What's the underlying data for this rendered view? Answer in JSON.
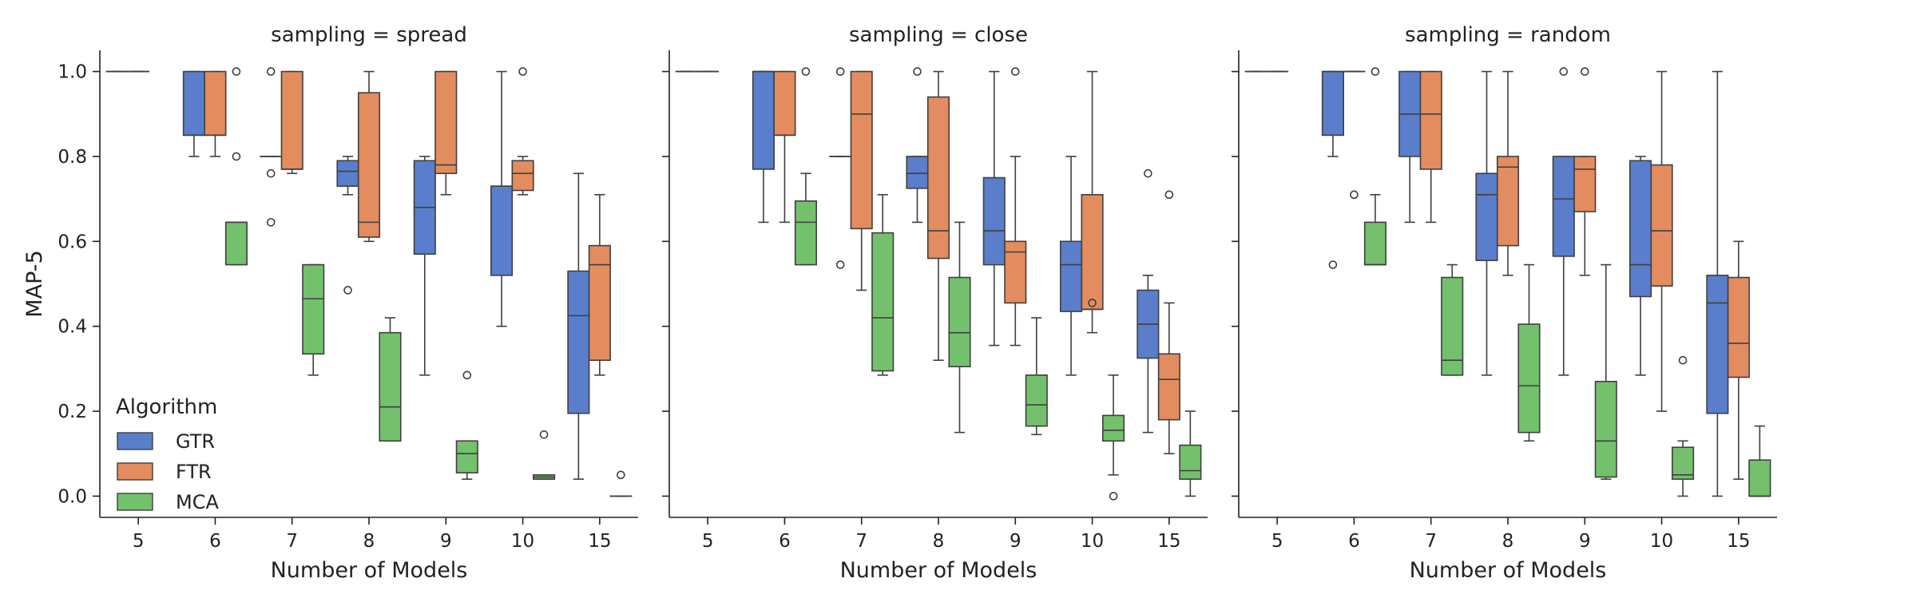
{
  "chart_data": {
    "type": "box",
    "ylabel": "MAP-5",
    "ylim": [
      -0.05,
      1.05
    ],
    "yticks": [
      0.0,
      0.2,
      0.4,
      0.6,
      0.8,
      1.0
    ],
    "ytick_labels": [
      "0.0",
      "0.2",
      "0.4",
      "0.6",
      "0.8",
      "1.0"
    ],
    "legend": {
      "title": "Algorithm",
      "position": "lower-left",
      "entries": [
        {
          "name": "GTR",
          "color": "#5a7ecb"
        },
        {
          "name": "FTR",
          "color": "#e28c5f"
        },
        {
          "name": "MCA",
          "color": "#73c16c"
        }
      ]
    },
    "panels": [
      {
        "title": "sampling = spread",
        "xlabel": "Number of Models",
        "categories": [
          "5",
          "6",
          "7",
          "8",
          "9",
          "10",
          "15"
        ],
        "series": [
          {
            "name": "GTR",
            "boxes": [
              {
                "wlo": 1.0,
                "q1": 1.0,
                "med": 1.0,
                "q3": 1.0,
                "whi": 1.0,
                "fliers": []
              },
              {
                "wlo": 0.8,
                "q1": 0.85,
                "med": 0.85,
                "q3": 1.0,
                "whi": 1.0,
                "fliers": []
              },
              {
                "wlo": 0.8,
                "q1": 0.8,
                "med": 0.8,
                "q3": 0.8,
                "whi": 0.8,
                "fliers": [
                  0.76,
                  0.645,
                  1.0
                ]
              },
              {
                "wlo": 0.71,
                "q1": 0.73,
                "med": 0.765,
                "q3": 0.79,
                "whi": 0.8,
                "fliers": [
                  0.485
                ]
              },
              {
                "wlo": 0.285,
                "q1": 0.57,
                "med": 0.68,
                "q3": 0.79,
                "whi": 0.8,
                "fliers": []
              },
              {
                "wlo": 0.4,
                "q1": 0.52,
                "med": 0.73,
                "q3": 0.73,
                "whi": 1.0,
                "fliers": []
              },
              {
                "wlo": 0.04,
                "q1": 0.195,
                "med": 0.425,
                "q3": 0.53,
                "whi": 0.76,
                "fliers": []
              }
            ]
          },
          {
            "name": "FTR",
            "boxes": [
              {
                "wlo": 1.0,
                "q1": 1.0,
                "med": 1.0,
                "q3": 1.0,
                "whi": 1.0,
                "fliers": []
              },
              {
                "wlo": 0.8,
                "q1": 0.85,
                "med": 0.85,
                "q3": 1.0,
                "whi": 1.0,
                "fliers": []
              },
              {
                "wlo": 0.76,
                "q1": 0.77,
                "med": 0.77,
                "q3": 1.0,
                "whi": 1.0,
                "fliers": []
              },
              {
                "wlo": 0.6,
                "q1": 0.61,
                "med": 0.645,
                "q3": 0.95,
                "whi": 1.0,
                "fliers": []
              },
              {
                "wlo": 0.71,
                "q1": 0.76,
                "med": 0.78,
                "q3": 1.0,
                "whi": 1.0,
                "fliers": []
              },
              {
                "wlo": 0.71,
                "q1": 0.72,
                "med": 0.76,
                "q3": 0.79,
                "whi": 0.8,
                "fliers": [
                  1.0
                ]
              },
              {
                "wlo": 0.285,
                "q1": 0.32,
                "med": 0.545,
                "q3": 0.59,
                "whi": 0.71,
                "fliers": []
              }
            ]
          },
          {
            "name": "MCA",
            "boxes": [
              {
                "wlo": null,
                "q1": null,
                "med": null,
                "q3": null,
                "whi": null,
                "fliers": []
              },
              {
                "wlo": 0.545,
                "q1": 0.545,
                "med": 0.645,
                "q3": 0.645,
                "whi": 0.645,
                "fliers": [
                  1.0,
                  0.8
                ]
              },
              {
                "wlo": 0.285,
                "q1": 0.335,
                "med": 0.465,
                "q3": 0.545,
                "whi": 0.545,
                "fliers": []
              },
              {
                "wlo": 0.13,
                "q1": 0.13,
                "med": 0.21,
                "q3": 0.385,
                "whi": 0.42,
                "fliers": []
              },
              {
                "wlo": 0.04,
                "q1": 0.055,
                "med": 0.1,
                "q3": 0.13,
                "whi": 0.13,
                "fliers": [
                  0.285
                ]
              },
              {
                "wlo": 0.04,
                "q1": 0.04,
                "med": 0.045,
                "q3": 0.05,
                "whi": 0.05,
                "fliers": [
                  0.145
                ]
              },
              {
                "wlo": 0.0,
                "q1": 0.0,
                "med": 0.0,
                "q3": 0.0,
                "whi": 0.0,
                "fliers": [
                  0.05
                ]
              }
            ]
          }
        ]
      },
      {
        "title": "sampling = close",
        "xlabel": "Number of Models",
        "categories": [
          "5",
          "6",
          "7",
          "8",
          "9",
          "10",
          "15"
        ],
        "series": [
          {
            "name": "GTR",
            "boxes": [
              {
                "wlo": 1.0,
                "q1": 1.0,
                "med": 1.0,
                "q3": 1.0,
                "whi": 1.0,
                "fliers": []
              },
              {
                "wlo": 0.645,
                "q1": 0.77,
                "med": 1.0,
                "q3": 1.0,
                "whi": 1.0,
                "fliers": []
              },
              {
                "wlo": 0.8,
                "q1": 0.8,
                "med": 0.8,
                "q3": 0.8,
                "whi": 0.8,
                "fliers": [
                  1.0,
                  0.545
                ]
              },
              {
                "wlo": 0.645,
                "q1": 0.725,
                "med": 0.76,
                "q3": 0.8,
                "whi": 0.8,
                "fliers": [
                  1.0
                ]
              },
              {
                "wlo": 0.355,
                "q1": 0.545,
                "med": 0.625,
                "q3": 0.75,
                "whi": 1.0,
                "fliers": []
              },
              {
                "wlo": 0.285,
                "q1": 0.435,
                "med": 0.545,
                "q3": 0.6,
                "whi": 0.8,
                "fliers": []
              },
              {
                "wlo": 0.15,
                "q1": 0.325,
                "med": 0.405,
                "q3": 0.485,
                "whi": 0.52,
                "fliers": [
                  0.76
                ]
              }
            ]
          },
          {
            "name": "FTR",
            "boxes": [
              {
                "wlo": 1.0,
                "q1": 1.0,
                "med": 1.0,
                "q3": 1.0,
                "whi": 1.0,
                "fliers": []
              },
              {
                "wlo": 0.645,
                "q1": 0.85,
                "med": 0.85,
                "q3": 1.0,
                "whi": 1.0,
                "fliers": []
              },
              {
                "wlo": 0.485,
                "q1": 0.63,
                "med": 0.9,
                "q3": 1.0,
                "whi": 1.0,
                "fliers": []
              },
              {
                "wlo": 0.32,
                "q1": 0.56,
                "med": 0.625,
                "q3": 0.94,
                "whi": 1.0,
                "fliers": []
              },
              {
                "wlo": 0.355,
                "q1": 0.455,
                "med": 0.575,
                "q3": 0.6,
                "whi": 0.8,
                "fliers": [
                  1.0
                ]
              },
              {
                "wlo": 0.385,
                "q1": 0.44,
                "med": 0.44,
                "q3": 0.71,
                "whi": 1.0,
                "fliers": [
                  0.455
                ]
              },
              {
                "wlo": 0.1,
                "q1": 0.18,
                "med": 0.275,
                "q3": 0.335,
                "whi": 0.455,
                "fliers": [
                  0.71
                ]
              }
            ]
          },
          {
            "name": "MCA",
            "boxes": [
              {
                "wlo": null,
                "q1": null,
                "med": null,
                "q3": null,
                "whi": null,
                "fliers": []
              },
              {
                "wlo": 0.545,
                "q1": 0.545,
                "med": 0.645,
                "q3": 0.695,
                "whi": 0.76,
                "fliers": [
                  1.0
                ]
              },
              {
                "wlo": 0.285,
                "q1": 0.295,
                "med": 0.42,
                "q3": 0.62,
                "whi": 0.71,
                "fliers": []
              },
              {
                "wlo": 0.15,
                "q1": 0.305,
                "med": 0.385,
                "q3": 0.515,
                "whi": 0.645,
                "fliers": []
              },
              {
                "wlo": 0.145,
                "q1": 0.165,
                "med": 0.215,
                "q3": 0.285,
                "whi": 0.42,
                "fliers": []
              },
              {
                "wlo": 0.05,
                "q1": 0.13,
                "med": 0.155,
                "q3": 0.19,
                "whi": 0.285,
                "fliers": [
                  0.0
                ]
              },
              {
                "wlo": 0.0,
                "q1": 0.04,
                "med": 0.06,
                "q3": 0.12,
                "whi": 0.2,
                "fliers": []
              }
            ]
          }
        ]
      },
      {
        "title": "sampling = random",
        "xlabel": "Number of Models",
        "categories": [
          "5",
          "6",
          "7",
          "8",
          "9",
          "10",
          "15"
        ],
        "series": [
          {
            "name": "GTR",
            "boxes": [
              {
                "wlo": 1.0,
                "q1": 1.0,
                "med": 1.0,
                "q3": 1.0,
                "whi": 1.0,
                "fliers": []
              },
              {
                "wlo": 0.8,
                "q1": 0.85,
                "med": 1.0,
                "q3": 1.0,
                "whi": 1.0,
                "fliers": [
                  0.545
                ]
              },
              {
                "wlo": 0.645,
                "q1": 0.8,
                "med": 0.9,
                "q3": 1.0,
                "whi": 1.0,
                "fliers": []
              },
              {
                "wlo": 0.285,
                "q1": 0.555,
                "med": 0.71,
                "q3": 0.76,
                "whi": 1.0,
                "fliers": []
              },
              {
                "wlo": 0.285,
                "q1": 0.565,
                "med": 0.7,
                "q3": 0.8,
                "whi": 0.8,
                "fliers": [
                  1.0
                ]
              },
              {
                "wlo": 0.285,
                "q1": 0.47,
                "med": 0.545,
                "q3": 0.79,
                "whi": 0.8,
                "fliers": []
              },
              {
                "wlo": 0.0,
                "q1": 0.195,
                "med": 0.455,
                "q3": 0.52,
                "whi": 1.0,
                "fliers": []
              }
            ]
          },
          {
            "name": "FTR",
            "boxes": [
              {
                "wlo": 1.0,
                "q1": 1.0,
                "med": 1.0,
                "q3": 1.0,
                "whi": 1.0,
                "fliers": []
              },
              {
                "wlo": 1.0,
                "q1": 1.0,
                "med": 1.0,
                "q3": 1.0,
                "whi": 1.0,
                "fliers": [
                  0.71
                ]
              },
              {
                "wlo": 0.645,
                "q1": 0.77,
                "med": 0.9,
                "q3": 1.0,
                "whi": 1.0,
                "fliers": []
              },
              {
                "wlo": 0.52,
                "q1": 0.59,
                "med": 0.775,
                "q3": 0.8,
                "whi": 1.0,
                "fliers": []
              },
              {
                "wlo": 0.52,
                "q1": 0.67,
                "med": 0.77,
                "q3": 0.8,
                "whi": 0.8,
                "fliers": [
                  1.0
                ]
              },
              {
                "wlo": 0.2,
                "q1": 0.495,
                "med": 0.625,
                "q3": 0.78,
                "whi": 1.0,
                "fliers": []
              },
              {
                "wlo": 0.04,
                "q1": 0.28,
                "med": 0.36,
                "q3": 0.515,
                "whi": 0.6,
                "fliers": []
              }
            ]
          },
          {
            "name": "MCA",
            "boxes": [
              {
                "wlo": null,
                "q1": null,
                "med": null,
                "q3": null,
                "whi": null,
                "fliers": []
              },
              {
                "wlo": 0.545,
                "q1": 0.545,
                "med": 0.545,
                "q3": 0.645,
                "whi": 0.71,
                "fliers": [
                  1.0
                ]
              },
              {
                "wlo": 0.285,
                "q1": 0.285,
                "med": 0.32,
                "q3": 0.515,
                "whi": 0.545,
                "fliers": []
              },
              {
                "wlo": 0.13,
                "q1": 0.15,
                "med": 0.26,
                "q3": 0.405,
                "whi": 0.545,
                "fliers": []
              },
              {
                "wlo": 0.04,
                "q1": 0.045,
                "med": 0.13,
                "q3": 0.27,
                "whi": 0.545,
                "fliers": []
              },
              {
                "wlo": 0.0,
                "q1": 0.04,
                "med": 0.05,
                "q3": 0.115,
                "whi": 0.13,
                "fliers": [
                  0.32
                ]
              },
              {
                "wlo": 0.0,
                "q1": 0.0,
                "med": 0.0,
                "q3": 0.085,
                "whi": 0.165,
                "fliers": []
              }
            ]
          }
        ]
      }
    ]
  }
}
